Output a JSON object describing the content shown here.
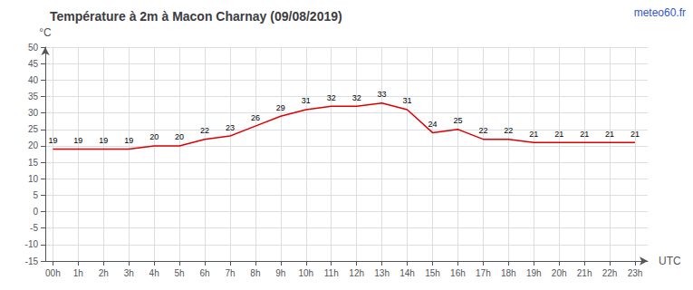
{
  "chart_data": {
    "type": "line",
    "title": "Température à 2m à Macon Charnay (09/08/2019)",
    "ylabel": "°C",
    "xlabel": "UTC",
    "annotations": [
      "meteo60.fr"
    ],
    "x": [
      0,
      1,
      2,
      3,
      4,
      5,
      6,
      7,
      8,
      9,
      10,
      11,
      12,
      13,
      14,
      15,
      16,
      17,
      18,
      19,
      20,
      21,
      22,
      23
    ],
    "values": [
      19,
      19,
      19,
      19,
      20,
      20,
      22,
      23,
      26,
      29,
      31,
      32,
      32,
      33,
      31,
      24,
      25,
      22,
      22,
      21,
      21,
      21,
      21,
      21
    ],
    "color": "#dd0000",
    "xlim": [
      -0.3,
      23.5
    ],
    "xticks": [
      {
        "value": 0,
        "label": "00h"
      },
      {
        "value": 1,
        "label": "1h"
      },
      {
        "value": 2,
        "label": "2h"
      },
      {
        "value": 3,
        "label": "3h"
      },
      {
        "value": 4,
        "label": "4h"
      },
      {
        "value": 5,
        "label": "5h"
      },
      {
        "value": 6,
        "label": "6h"
      },
      {
        "value": 7,
        "label": "7h"
      },
      {
        "value": 8,
        "label": "8h"
      },
      {
        "value": 9,
        "label": "9h"
      },
      {
        "value": 10,
        "label": "10h"
      },
      {
        "value": 11,
        "label": "11h"
      },
      {
        "value": 12,
        "label": "12h"
      },
      {
        "value": 13,
        "label": "13h"
      },
      {
        "value": 14,
        "label": "14h"
      },
      {
        "value": 15,
        "label": "15h"
      },
      {
        "value": 16,
        "label": "16h"
      },
      {
        "value": 17,
        "label": "17h"
      },
      {
        "value": 18,
        "label": "18h"
      },
      {
        "value": 19,
        "label": "19h"
      },
      {
        "value": 20,
        "label": "20h"
      },
      {
        "value": 21,
        "label": "21h"
      },
      {
        "value": 22,
        "label": "22h"
      },
      {
        "value": 23,
        "label": "23h"
      }
    ],
    "ylim": [
      -15,
      50
    ],
    "yticks": [
      -15,
      -10,
      -5,
      0,
      5,
      10,
      15,
      20,
      25,
      30,
      35,
      40,
      45,
      50
    ],
    "grid": true,
    "data_labels": true
  }
}
